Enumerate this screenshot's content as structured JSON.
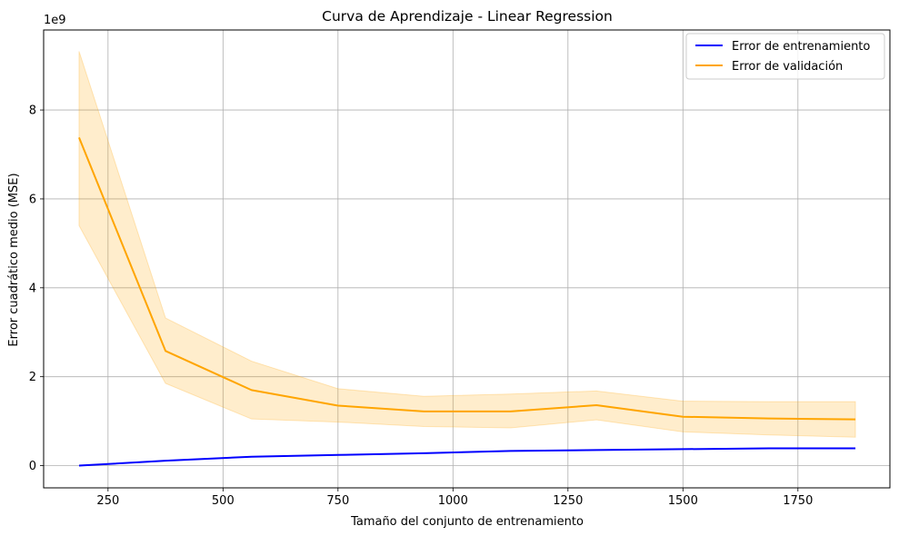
{
  "chart_data": {
    "type": "line",
    "title": "Curva de Aprendizaje - Linear Regression",
    "xlabel": "Tamaño del conjunto de entrenamiento",
    "ylabel": "Error cuadrático medio (MSE)",
    "y_offset_label": "1e9",
    "xlim": [
      110,
      1950
    ],
    "ylim": [
      -0.5,
      9.8
    ],
    "x_ticks": [
      250,
      500,
      750,
      1000,
      1250,
      1500,
      1750
    ],
    "y_ticks": [
      0,
      2,
      4,
      6,
      8
    ],
    "grid": true,
    "legend_position": "top-right",
    "x": [
      187,
      375,
      562,
      750,
      937,
      1125,
      1312,
      1500,
      1687,
      1875
    ],
    "series": [
      {
        "name": "Error de entrenamiento",
        "color": "#0000ff",
        "values": [
          0.0,
          0.11,
          0.2,
          0.24,
          0.28,
          0.33,
          0.35,
          0.37,
          0.39,
          0.39
        ]
      },
      {
        "name": "Error de validación",
        "color": "#ffa500",
        "values": [
          7.38,
          2.58,
          1.7,
          1.35,
          1.22,
          1.22,
          1.36,
          1.1,
          1.06,
          1.04
        ],
        "band_upper": [
          9.32,
          3.32,
          2.35,
          1.73,
          1.56,
          1.61,
          1.68,
          1.45,
          1.44,
          1.44
        ],
        "band_lower": [
          5.4,
          1.85,
          1.05,
          0.98,
          0.88,
          0.85,
          1.03,
          0.76,
          0.69,
          0.64
        ]
      }
    ]
  }
}
